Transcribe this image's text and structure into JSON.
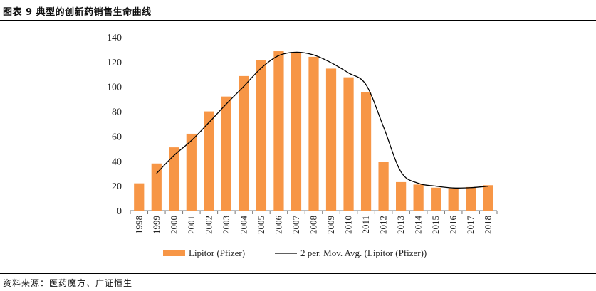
{
  "header": {
    "title": "图表 9  典型的创新药销售生命曲线"
  },
  "footer": {
    "source": "资料来源：医药魔方、广证恒生"
  },
  "colors": {
    "bar": "#F79646",
    "line": "#000000",
    "axis": "#777777"
  },
  "chart_data": {
    "type": "bar",
    "title": "",
    "xlabel": "",
    "ylabel": "",
    "ylim": [
      0,
      140
    ],
    "yticks": [
      0,
      20,
      40,
      60,
      80,
      100,
      120,
      140
    ],
    "grid": false,
    "legend_position": "bottom",
    "categories": [
      "1998",
      "1999",
      "2000",
      "2001",
      "2002",
      "2003",
      "2004",
      "2005",
      "2006",
      "2007",
      "2008",
      "2009",
      "2010",
      "2011",
      "2012",
      "2013",
      "2014",
      "2015",
      "2016",
      "2017",
      "2018"
    ],
    "series": [
      {
        "name": "Lipitor (Pfizer)",
        "type": "bar",
        "values": [
          22,
          38,
          51,
          62,
          80,
          92,
          108.5,
          121.5,
          128.5,
          127,
          124,
          114.5,
          107.5,
          95.5,
          39.5,
          23,
          21,
          18.5,
          18,
          19,
          20.5
        ]
      },
      {
        "name": "2 per. Mov. Avg. (Lipitor (Pfizer))",
        "type": "line",
        "values": [
          null,
          30,
          44.5,
          56.5,
          71,
          86,
          100.25,
          115,
          125,
          127.75,
          125.5,
          119.25,
          111,
          101.5,
          67.5,
          31.25,
          22,
          19.75,
          18.25,
          18.5,
          19.75
        ]
      }
    ]
  }
}
